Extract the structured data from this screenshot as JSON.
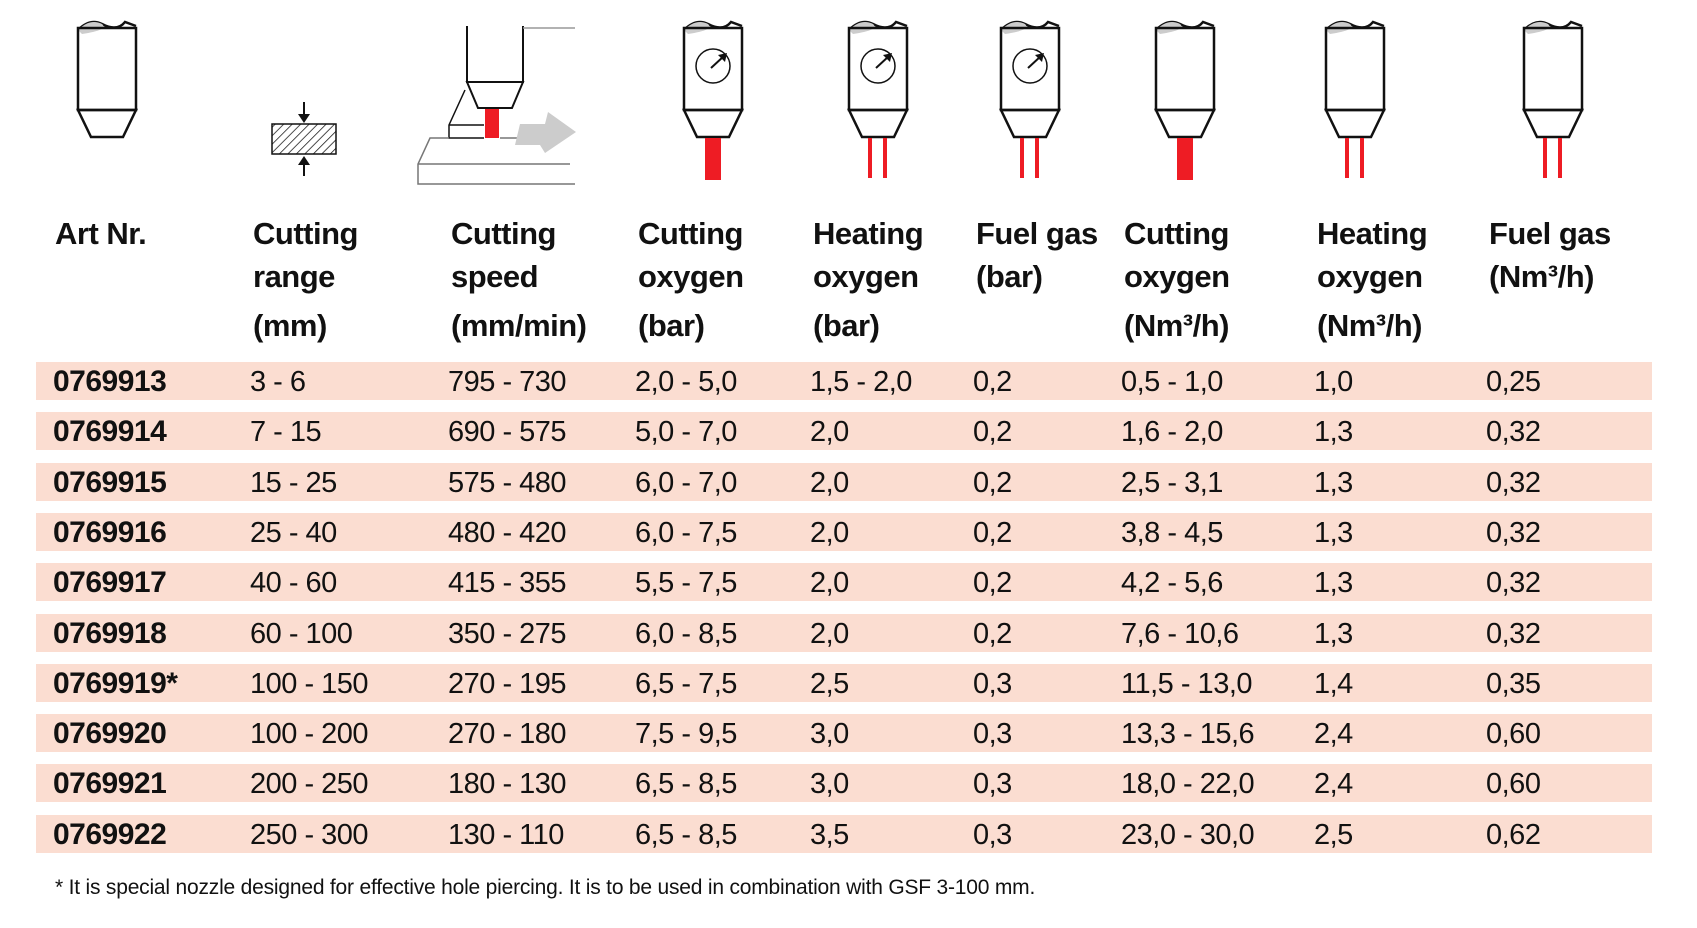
{
  "colors": {
    "row_band": "#fbddd1",
    "jet": "#ee1c24",
    "nozzle_tip": "#cccccc"
  },
  "icons": [
    "nozzle-icon",
    "material-thickness-icon",
    "cutting-speed-icon",
    "cutting-oxygen-pressure-icon",
    "heating-oxygen-pressure-icon",
    "fuel-gas-pressure-icon",
    "cutting-oxygen-flow-icon",
    "heating-oxygen-flow-icon",
    "fuel-gas-flow-icon"
  ],
  "headers": [
    {
      "l1": "Art Nr.",
      "l2": "",
      "l3": ""
    },
    {
      "l1": "Cutting",
      "l2": "range",
      "l3": "(mm)"
    },
    {
      "l1": "Cutting",
      "l2": "speed",
      "l3": "(mm/min)"
    },
    {
      "l1": "Cutting",
      "l2": "oxygen",
      "l3": "(bar)"
    },
    {
      "l1": "Heating",
      "l2": "oxygen",
      "l3": "(bar)"
    },
    {
      "l1": "Fuel gas",
      "l2": "(bar)",
      "l3": ""
    },
    {
      "l1": "Cutting",
      "l2": "oxygen",
      "l3": "(Nm³/h)"
    },
    {
      "l1": "Heating",
      "l2": "oxygen",
      "l3": "(Nm³/h)"
    },
    {
      "l1": "Fuel gas",
      "l2": "(Nm³/h)",
      "l3": ""
    }
  ],
  "rows": [
    [
      "0769913",
      "3 - 6",
      "795 - 730",
      "2,0 - 5,0",
      "1,5 - 2,0",
      "0,2",
      "0,5 - 1,0",
      "1,0",
      "0,25"
    ],
    [
      "0769914",
      "7 - 15",
      "690 - 575",
      "5,0 - 7,0",
      "2,0",
      "0,2",
      "1,6 - 2,0",
      "1,3",
      "0,32"
    ],
    [
      "0769915",
      "15 - 25",
      "575 - 480",
      "6,0 - 7,0",
      "2,0",
      "0,2",
      "2,5 - 3,1",
      "1,3",
      "0,32"
    ],
    [
      "0769916",
      "25 - 40",
      "480 - 420",
      "6,0 - 7,5",
      "2,0",
      "0,2",
      "3,8 - 4,5",
      "1,3",
      "0,32"
    ],
    [
      "0769917",
      "40 - 60",
      "415 - 355",
      "5,5 - 7,5",
      "2,0",
      "0,2",
      "4,2 - 5,6",
      "1,3",
      "0,32"
    ],
    [
      "0769918",
      "60 - 100",
      "350 - 275",
      "6,0 - 8,5",
      "2,0",
      "0,2",
      "7,6 - 10,6",
      "1,3",
      "0,32"
    ],
    [
      "0769919*",
      "100 - 150",
      "270 - 195",
      "6,5 - 7,5",
      "2,5",
      "0,3",
      "11,5 - 13,0",
      "1,4",
      "0,35"
    ],
    [
      "0769920",
      "100 - 200",
      "270 - 180",
      "7,5 - 9,5",
      "3,0",
      "0,3",
      "13,3 - 15,6",
      "2,4",
      "0,60"
    ],
    [
      "0769921",
      "200 - 250",
      "180 - 130",
      "6,5 - 8,5",
      "3,0",
      "0,3",
      "18,0 - 22,0",
      "2,4",
      "0,60"
    ],
    [
      "0769922",
      "250 - 300",
      "130 - 110",
      "6,5 - 8,5",
      "3,5",
      "0,3",
      "23,0 - 30,0",
      "2,5",
      "0,62"
    ]
  ],
  "footnote": "* It is special nozzle designed for effective hole piercing. It is to be used in combination with GSF 3-100 mm."
}
